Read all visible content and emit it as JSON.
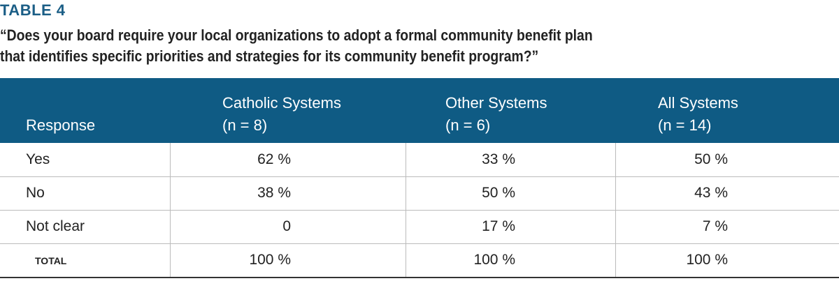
{
  "table_label": "TABLE 4",
  "question": [
    "“Does your board require your local organizations to adopt a formal community benefit plan",
    "that identifies specific priorities and strategies for its community benefit program?”"
  ],
  "table": {
    "header": [
      [
        "Response"
      ],
      [
        "Catholic Systems",
        "(n = 8)"
      ],
      [
        "Other Systems",
        "(n = 6)"
      ],
      [
        "All Systems",
        "(n = 14)"
      ]
    ],
    "rows": [
      [
        "Yes",
        "62 %",
        "33 %",
        "50 %"
      ],
      [
        "No",
        "38 %",
        "50 %",
        "43 %"
      ],
      [
        "Not clear",
        "0",
        "17 %",
        "7 %"
      ],
      [
        "TOTAL",
        "100 %",
        "100 %",
        "100 %"
      ]
    ]
  }
}
